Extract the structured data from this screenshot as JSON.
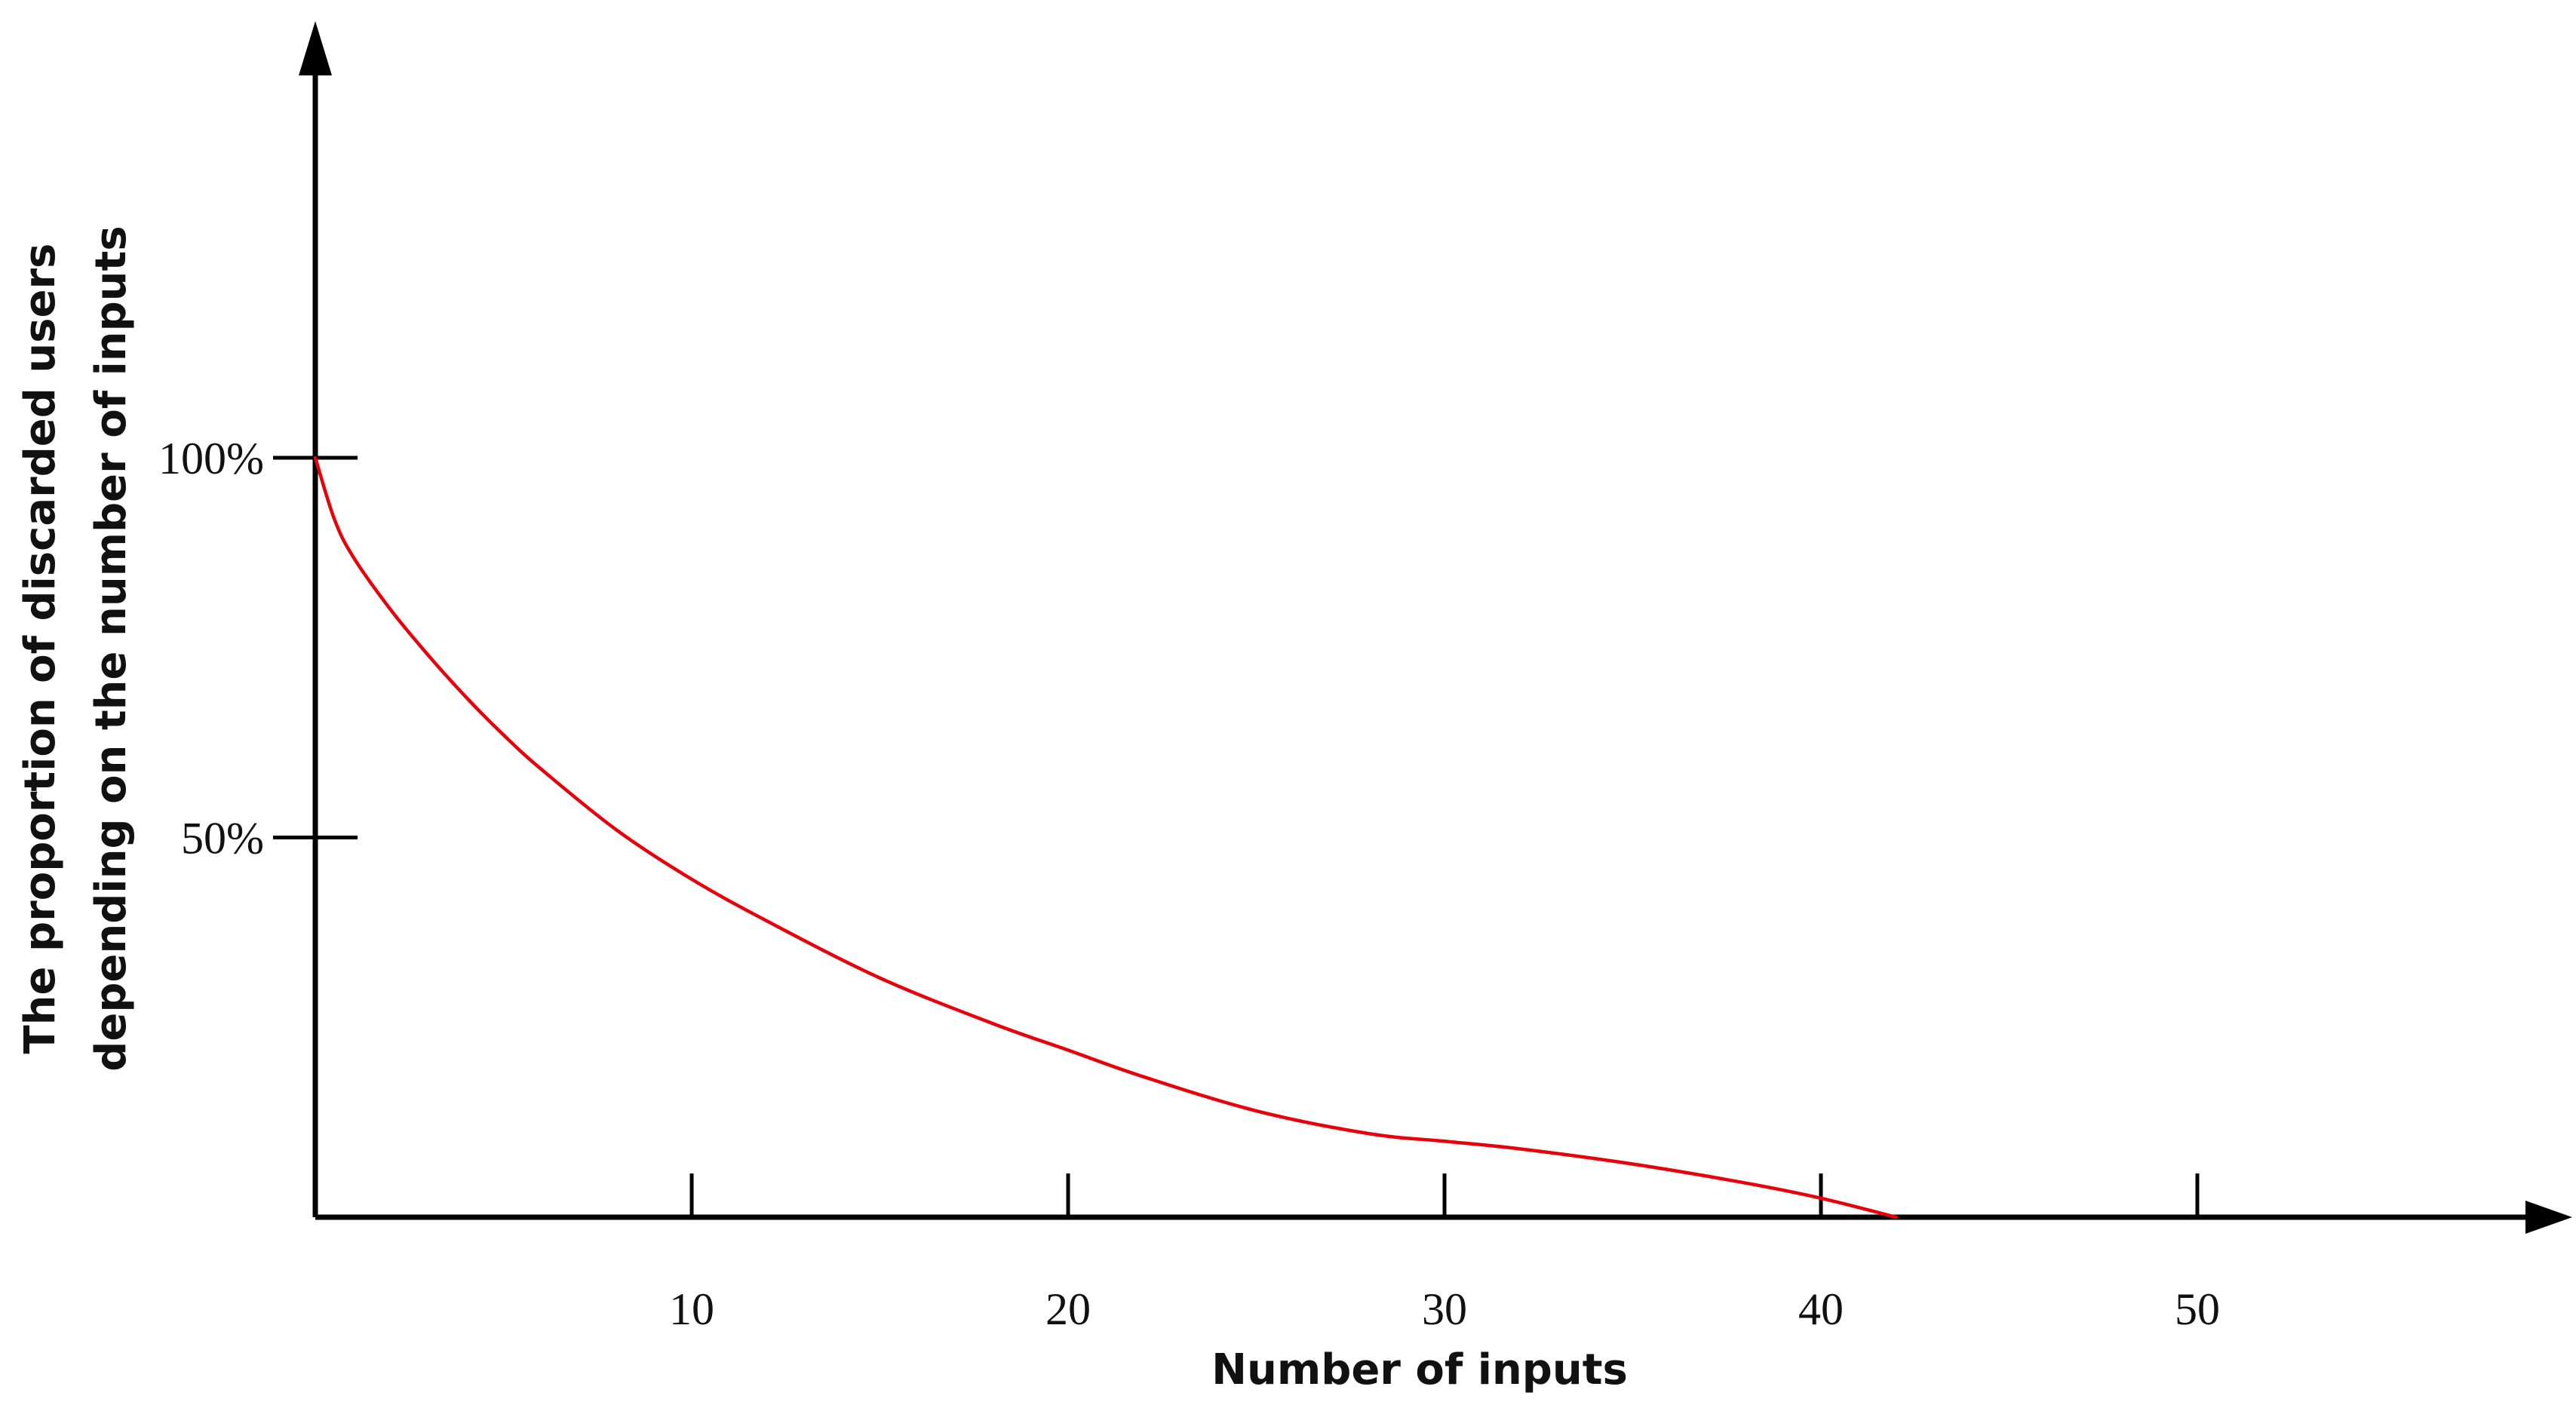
{
  "chart_data": {
    "type": "line",
    "title": "",
    "xlabel": "Number of inputs",
    "ylabel_lines": [
      "The proportion of discarded users",
      "depending on the number of inputs"
    ],
    "x_ticks": [
      10,
      20,
      30,
      40,
      50
    ],
    "x_tick_labels": [
      "10",
      "20",
      "30",
      "40",
      "50"
    ],
    "y_ticks": [
      50,
      100
    ],
    "y_tick_labels": [
      "50%",
      "100%"
    ],
    "xlim": [
      0,
      60
    ],
    "ylim": [
      0,
      200
    ],
    "grid": false,
    "series": [
      {
        "color": "#e8000b",
        "x": [
          0,
          0.5,
          1,
          2,
          3,
          4,
          5,
          6,
          8,
          10,
          12,
          15,
          18,
          20,
          22,
          25,
          28,
          30,
          32,
          35,
          38,
          40,
          42
        ],
        "y": [
          100,
          92,
          87,
          80,
          74,
          68.5,
          63.5,
          59,
          51,
          44.5,
          39,
          31.5,
          25.5,
          22,
          18.5,
          14,
          11,
          10,
          9,
          7,
          4.5,
          2.5,
          0
        ]
      }
    ]
  }
}
